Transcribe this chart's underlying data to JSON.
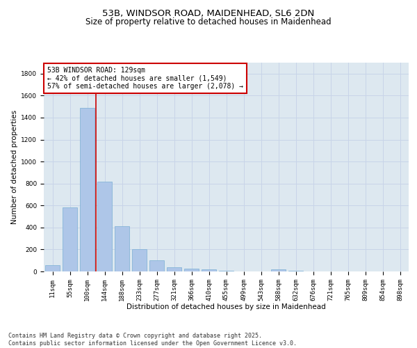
{
  "title_line1": "53B, WINDSOR ROAD, MAIDENHEAD, SL6 2DN",
  "title_line2": "Size of property relative to detached houses in Maidenhead",
  "xlabel": "Distribution of detached houses by size in Maidenhead",
  "ylabel": "Number of detached properties",
  "categories": [
    "11sqm",
    "55sqm",
    "100sqm",
    "144sqm",
    "188sqm",
    "233sqm",
    "277sqm",
    "321sqm",
    "366sqm",
    "410sqm",
    "455sqm",
    "499sqm",
    "543sqm",
    "588sqm",
    "632sqm",
    "676sqm",
    "721sqm",
    "765sqm",
    "809sqm",
    "854sqm",
    "898sqm"
  ],
  "bar_values": [
    55,
    580,
    1490,
    820,
    410,
    200,
    100,
    35,
    25,
    20,
    5,
    0,
    0,
    20,
    5,
    0,
    0,
    0,
    0,
    0,
    0
  ],
  "bar_color": "#aec6e8",
  "bar_edge_color": "#7aafd4",
  "vline_color": "#cc0000",
  "annotation_text": "53B WINDSOR ROAD: 129sqm\n← 42% of detached houses are smaller (1,549)\n57% of semi-detached houses are larger (2,078) →",
  "annotation_box_color": "#ffffff",
  "annotation_box_edge_color": "#cc0000",
  "ylim": [
    0,
    1900
  ],
  "yticks": [
    0,
    200,
    400,
    600,
    800,
    1000,
    1200,
    1400,
    1600,
    1800
  ],
  "grid_color": "#c8d4e8",
  "bg_color": "#dde8f0",
  "footer_text": "Contains HM Land Registry data © Crown copyright and database right 2025.\nContains public sector information licensed under the Open Government Licence v3.0.",
  "title_fontsize": 9.5,
  "subtitle_fontsize": 8.5,
  "axis_label_fontsize": 7.5,
  "tick_fontsize": 6.5,
  "annotation_fontsize": 7,
  "footer_fontsize": 6
}
